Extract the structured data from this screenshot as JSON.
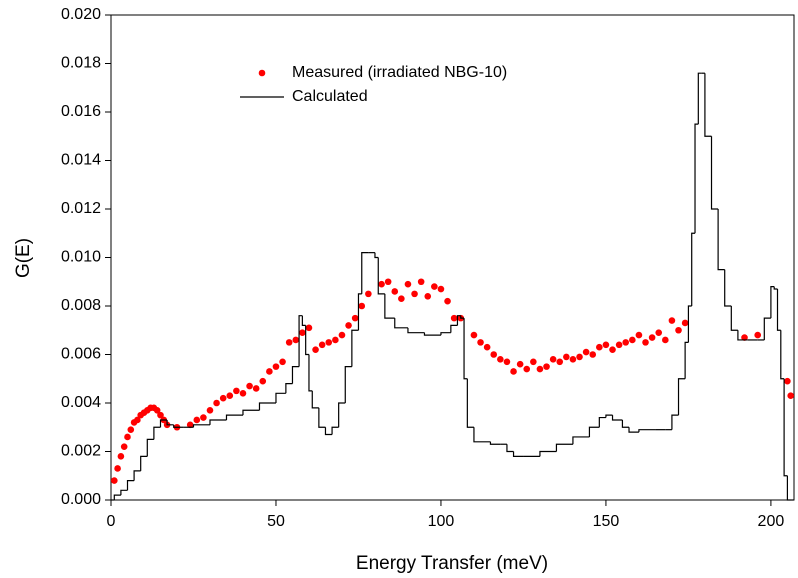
{
  "chart_data": {
    "type": "scatter-step",
    "x_label": "Energy Transfer (meV)",
    "y_label": "G(E)",
    "xlim": [
      0,
      207
    ],
    "ylim": [
      0,
      0.02
    ],
    "xticks": [
      0,
      50,
      100,
      150,
      200
    ],
    "yticks": [
      {
        "value": 0,
        "label": "0.000"
      },
      {
        "value": 0.002,
        "label": "0.002"
      },
      {
        "value": 0.004,
        "label": "0.004"
      },
      {
        "value": 0.006,
        "label": "0.006"
      },
      {
        "value": 0.008,
        "label": "0.008"
      },
      {
        "value": 0.01,
        "label": "0.010"
      },
      {
        "value": 0.012,
        "label": "0.012"
      },
      {
        "value": 0.014,
        "label": "0.014"
      },
      {
        "value": 0.016,
        "label": "0.016"
      },
      {
        "value": 0.018,
        "label": "0.018"
      },
      {
        "value": 0.02,
        "label": "0.020"
      }
    ],
    "series": [
      {
        "name": "Measured (irradiated NBG-10)",
        "kind": "scatter",
        "color": "#ff0000",
        "x": [
          1,
          2,
          3,
          4,
          5,
          6,
          7,
          8,
          9,
          10,
          11,
          12,
          13,
          14,
          15,
          16,
          17,
          20,
          24,
          26,
          28,
          30,
          32,
          34,
          36,
          38,
          40,
          42,
          44,
          46,
          48,
          50,
          52,
          54,
          56,
          58,
          60,
          62,
          64,
          66,
          68,
          70,
          72,
          74,
          76,
          78,
          82,
          84,
          86,
          88,
          90,
          92,
          94,
          96,
          98,
          100,
          102,
          104,
          106,
          110,
          112,
          114,
          116,
          118,
          120,
          122,
          124,
          126,
          128,
          130,
          132,
          134,
          136,
          138,
          140,
          142,
          144,
          146,
          148,
          150,
          152,
          154,
          156,
          158,
          160,
          162,
          164,
          166,
          168,
          170,
          172,
          174,
          192,
          196,
          205,
          206
        ],
        "values": [
          0.0008,
          0.0013,
          0.0018,
          0.0022,
          0.0026,
          0.0029,
          0.0032,
          0.0033,
          0.0035,
          0.0036,
          0.0037,
          0.0038,
          0.0038,
          0.0037,
          0.0035,
          0.0033,
          0.0031,
          0.003,
          0.0031,
          0.0033,
          0.0034,
          0.0037,
          0.004,
          0.0042,
          0.0043,
          0.0045,
          0.0044,
          0.0047,
          0.0046,
          0.0049,
          0.0053,
          0.0055,
          0.0057,
          0.0065,
          0.0066,
          0.0069,
          0.0071,
          0.0062,
          0.0064,
          0.0065,
          0.0066,
          0.0068,
          0.0072,
          0.0075,
          0.008,
          0.0085,
          0.0089,
          0.009,
          0.0086,
          0.0083,
          0.0089,
          0.0085,
          0.009,
          0.0084,
          0.0088,
          0.0087,
          0.0082,
          0.0075,
          0.0075,
          0.0068,
          0.0065,
          0.0063,
          0.006,
          0.0058,
          0.0057,
          0.0053,
          0.0056,
          0.0054,
          0.0057,
          0.0054,
          0.0055,
          0.0058,
          0.0057,
          0.0059,
          0.0058,
          0.0059,
          0.0061,
          0.006,
          0.0063,
          0.0064,
          0.0062,
          0.0064,
          0.0065,
          0.0066,
          0.0068,
          0.0065,
          0.0067,
          0.0069,
          0.0066,
          0.0074,
          0.007,
          0.0073,
          0.0067,
          0.0068,
          0.0049,
          0.0043
        ]
      },
      {
        "name": "Calculated",
        "kind": "step",
        "color": "#000000",
        "x": [
          0,
          1,
          3,
          5,
          7,
          9,
          11,
          13,
          15,
          17,
          19,
          22,
          25,
          30,
          35,
          40,
          45,
          50,
          53,
          55,
          57,
          58,
          59,
          60,
          61,
          63,
          65,
          67,
          69,
          71,
          73,
          75,
          76,
          78,
          80,
          81,
          83,
          86,
          90,
          95,
          100,
          103,
          105,
          106,
          107,
          108,
          110,
          115,
          118,
          120,
          122,
          125,
          130,
          135,
          140,
          145,
          148,
          150,
          152,
          155,
          157,
          160,
          165,
          168,
          170,
          172,
          174,
          175,
          176,
          177,
          178,
          179,
          180,
          182,
          184,
          186,
          188,
          190,
          193,
          196,
          198,
          200,
          201,
          202,
          203,
          204,
          205,
          206
        ],
        "values": [
          0,
          0.0002,
          0.0004,
          0.0008,
          0.0012,
          0.0018,
          0.0025,
          0.003,
          0.0033,
          0.0031,
          0.003,
          0.003,
          0.0031,
          0.0033,
          0.0035,
          0.0037,
          0.004,
          0.0044,
          0.0048,
          0.0055,
          0.0076,
          0.0072,
          0.006,
          0.0045,
          0.0038,
          0.003,
          0.0027,
          0.003,
          0.004,
          0.0055,
          0.007,
          0.0085,
          0.0102,
          0.0102,
          0.01,
          0.0085,
          0.0075,
          0.0071,
          0.0069,
          0.0068,
          0.0069,
          0.0072,
          0.0076,
          0.0075,
          0.005,
          0.003,
          0.0024,
          0.0023,
          0.0023,
          0.002,
          0.0018,
          0.0018,
          0.002,
          0.0023,
          0.0026,
          0.003,
          0.0034,
          0.0035,
          0.0033,
          0.003,
          0.0028,
          0.0029,
          0.0029,
          0.0029,
          0.0035,
          0.005,
          0.0065,
          0.008,
          0.011,
          0.0155,
          0.0176,
          0.0176,
          0.015,
          0.012,
          0.0095,
          0.008,
          0.007,
          0.0066,
          0.0066,
          0.0066,
          0.0075,
          0.0088,
          0.0087,
          0.007,
          0.005,
          0.001,
          0,
          0
        ]
      }
    ]
  }
}
